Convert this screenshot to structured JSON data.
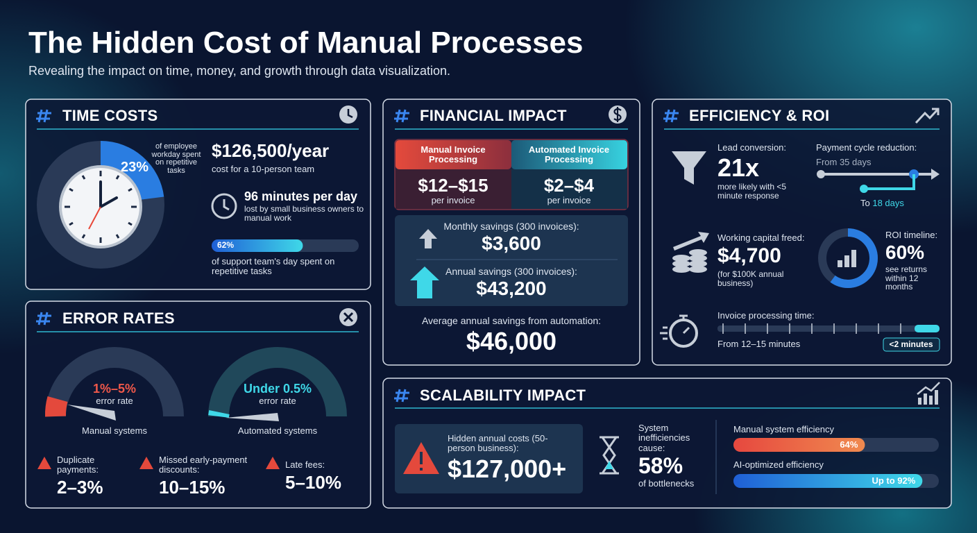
{
  "header": {
    "title": "The Hidden Cost of Manual Processes",
    "subtitle": "Revealing the impact on time, money, and growth through data visualization."
  },
  "time_costs": {
    "title": "TIME COSTS",
    "workday_share": {
      "value": 23,
      "label": "23%"
    },
    "workday_caption": "of employee workday spent on repetitive tasks",
    "annual_cost": "$126,500/year",
    "annual_caption": "cost for a 10-person team",
    "minutes": "96 minutes per day",
    "minutes_caption": "lost by small business owners to manual work",
    "support_share": {
      "value": 62,
      "label": "62%"
    },
    "support_caption": "of support team's day spent on repetitive tasks"
  },
  "error_rates": {
    "title": "ERROR RATES",
    "gauges": [
      {
        "value": "1%–5%",
        "label": "error rate",
        "caption": "Manual systems"
      },
      {
        "value": "Under 0.5%",
        "label": "error rate",
        "caption": "Automated systems"
      }
    ],
    "stats": [
      {
        "label": "Duplicate payments:",
        "value": "2–3%"
      },
      {
        "label": "Missed early-payment discounts:",
        "value": "10–15%"
      },
      {
        "label": "Late fees:",
        "value": "5–10%"
      }
    ]
  },
  "financial": {
    "title": "FINANCIAL IMPACT",
    "columns": [
      {
        "heading": "Manual Invoice Processing",
        "price": "$12–$15",
        "unit": "per invoice"
      },
      {
        "heading": "Automated Invoice Processing",
        "price": "$2–$4",
        "unit": "per invoice"
      }
    ],
    "monthly": {
      "label": "Monthly savings (300 invoices):",
      "value": "$3,600"
    },
    "annual": {
      "label": "Annual savings (300 invoices):",
      "value": "$43,200"
    },
    "average": {
      "label": "Average annual savings from automation:",
      "value": "$46,000"
    }
  },
  "efficiency": {
    "title": "EFFICIENCY & ROI",
    "lead": {
      "label": "Lead conversion:",
      "value": "21x",
      "caption": "more likely with <5 minute response"
    },
    "payment": {
      "label": "Payment cycle reduction:",
      "from": "From 35 days",
      "to_prefix": "To",
      "to_value": "18 days"
    },
    "capital": {
      "label": "Working capital freed:",
      "value": "$4,700",
      "caption": "(for $100K annual business)"
    },
    "roi": {
      "label": "ROI timeline:",
      "share": {
        "value": 60,
        "label": "60%"
      },
      "caption": "see returns within 12 months"
    },
    "processing": {
      "label": "Invoice processing time:",
      "from": "From 12–15 minutes",
      "to": "<2 minutes"
    }
  },
  "scalability": {
    "title": "SCALABILITY IMPACT",
    "hidden": {
      "label": "Hidden annual costs (50-person business):",
      "value": "$127,000+"
    },
    "bottleneck": {
      "label": "System inefficiencies cause:",
      "value": "58%",
      "caption": "of bottlenecks"
    },
    "bars": [
      {
        "label": "Manual system efficiency",
        "share": {
          "value": 64,
          "label": "64%"
        }
      },
      {
        "label": "AI-optimized efficiency",
        "share": {
          "value": 92,
          "label": "Up to 92%"
        }
      }
    ]
  }
}
